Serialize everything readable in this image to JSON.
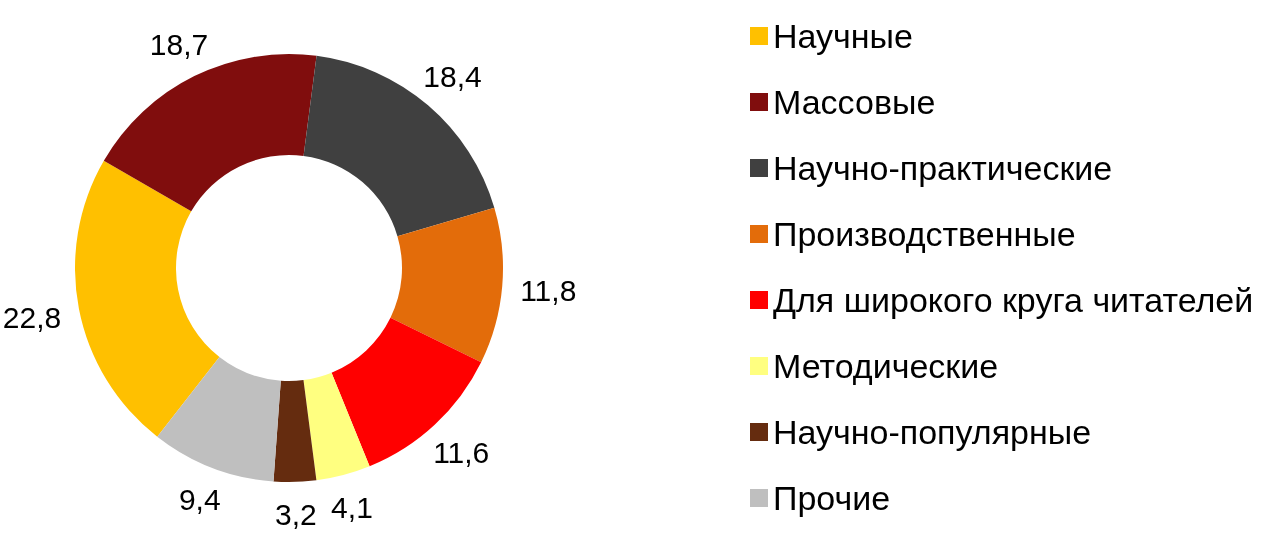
{
  "chart_data": {
    "type": "donut",
    "categories": [
      "Научные",
      "Массовые",
      "Научно-практические",
      "Производственные",
      "Для широкого круга читателей",
      "Методические",
      "Научно-популярные",
      "Прочие"
    ],
    "values": [
      22.8,
      18.7,
      18.4,
      11.8,
      11.6,
      4.1,
      3.2,
      9.4
    ],
    "colors": [
      "#ffc000",
      "#800d0d",
      "#404040",
      "#e36c0a",
      "#ff0000",
      "#ffff80",
      "#652c0f",
      "#bfbfbf"
    ],
    "value_labels": [
      "22,8",
      "18,7",
      "18,4",
      "11,8",
      "11,6",
      "4,1",
      "3,2",
      "9,4"
    ],
    "legend": "right"
  }
}
